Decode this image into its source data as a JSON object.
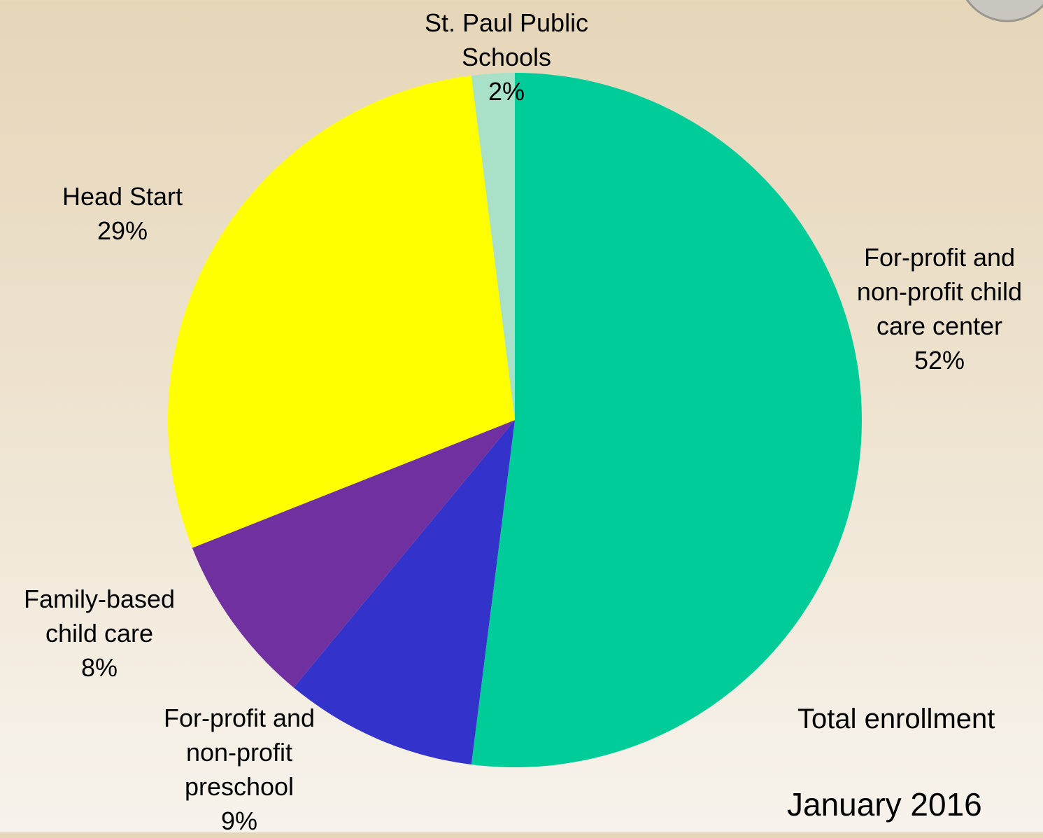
{
  "chart_data": {
    "type": "pie",
    "categories": [
      "For-profit and non-profit child care center",
      "For-profit and non-profit preschool",
      "Family-based child care",
      "Head Start",
      "St. Paul Public Schools"
    ],
    "values": [
      52,
      9,
      8,
      29,
      2
    ],
    "value_labels": [
      "52%",
      "9%",
      "8%",
      "29%",
      "2%"
    ],
    "colors": [
      "#00cc99",
      "#3333cc",
      "#7030a0",
      "#ffff00",
      "#a8e0c8"
    ],
    "annotations": [
      "Total enrollment",
      "January 2016"
    ]
  }
}
